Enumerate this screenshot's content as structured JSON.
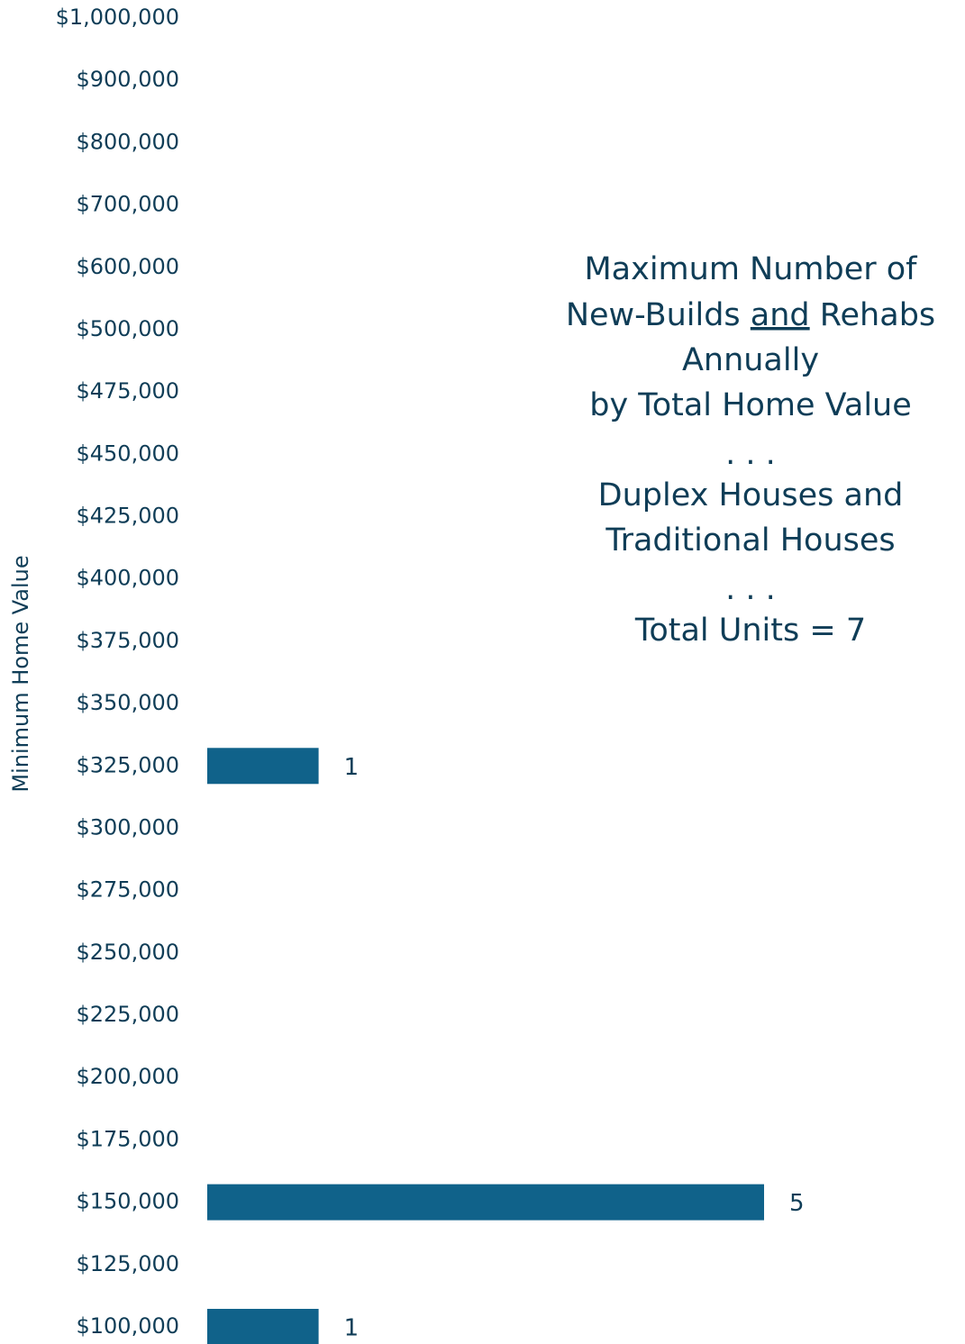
{
  "chart_data": {
    "type": "hbar",
    "title_lines": [
      [
        {
          "text": "Maximum Number of"
        }
      ],
      [
        {
          "text": "New-Builds "
        },
        {
          "text": "and",
          "underline": true
        },
        {
          "text": " Rehabs"
        }
      ],
      [
        {
          "text": "Annually"
        }
      ],
      [
        {
          "text": "by Total Home Value"
        }
      ],
      [
        {
          "text": ". . ."
        }
      ],
      [
        {
          "text": "Duplex Houses and"
        }
      ],
      [
        {
          "text": "Traditional Houses"
        }
      ],
      [
        {
          "text": ". . ."
        }
      ],
      [
        {
          "text": "Total Units = 7"
        }
      ]
    ],
    "y_label": "Minimum Home Value",
    "categories": [
      "$1,000,000",
      "$900,000",
      "$800,000",
      "$700,000",
      "$600,000",
      "$500,000",
      "$475,000",
      "$450,000",
      "$425,000",
      "$400,000",
      "$375,000",
      "$350,000",
      "$325,000",
      "$300,000",
      "$275,000",
      "$250,000",
      "$225,000",
      "$200,000",
      "$175,000",
      "$150,000",
      "$125,000",
      "$100,000"
    ],
    "values": [
      0,
      0,
      0,
      0,
      0,
      0,
      0,
      0,
      0,
      0,
      0,
      0,
      1,
      0,
      0,
      0,
      0,
      0,
      0,
      5,
      0,
      1
    ],
    "color": "#10628a",
    "xlim": [
      0,
      5
    ]
  }
}
